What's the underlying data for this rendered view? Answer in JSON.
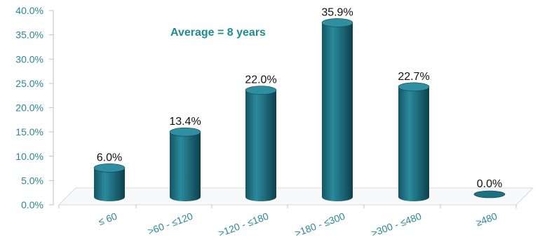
{
  "colors": {
    "axis_text": "#2A8795",
    "bar_body": "#1E6F80",
    "bar_top": "#2F8FA0",
    "bar_shadow": "#0F4350",
    "annotation": "#1E8C91",
    "grid": "#D9D9D9",
    "label_text": "#111111"
  },
  "chart_data": {
    "type": "bar",
    "style": "3d-cylinder",
    "categories": [
      "≤ 60",
      ">60 - ≤120",
      ">120 - ≤180",
      ">180 - ≤300",
      ">300 - ≤480",
      "≥480"
    ],
    "values": [
      6.0,
      13.4,
      22.0,
      35.9,
      22.7,
      0.0
    ],
    "data_labels": [
      "6.0%",
      "13.4%",
      "22.0%",
      "35.9%",
      "22.7%",
      "0.0%"
    ],
    "y_ticks": [
      "0.0%",
      "5.0%",
      "10.0%",
      "15.0%",
      "20.0%",
      "25.0%",
      "30.0%",
      "35.0%",
      "40.0%"
    ],
    "ylim": [
      0,
      40
    ],
    "annotation": "Average = 8 years",
    "grid": false,
    "legend": "none"
  }
}
